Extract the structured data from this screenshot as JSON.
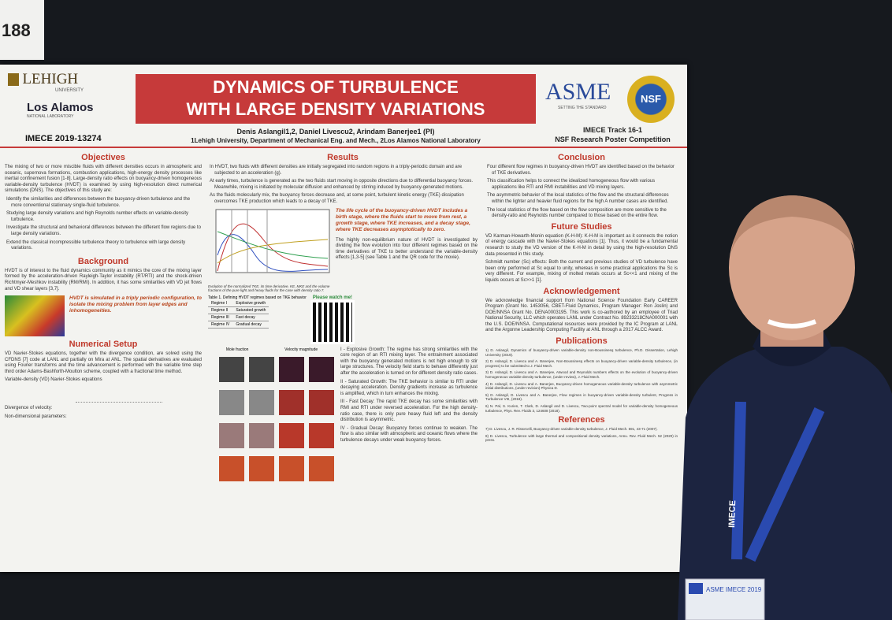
{
  "booth_number": "188",
  "poster": {
    "logos": {
      "lehigh": "LEHIGH",
      "lehigh_sub": "UNIVERSITY",
      "los_alamos": "Los Alamos",
      "los_alamos_sub": "NATIONAL LABORATORY",
      "asme": "ASME",
      "asme_sub": "SETTING THE STANDARD",
      "nsf": "NSF"
    },
    "paper_id": "IMECE 2019-13274",
    "title_lines": [
      "DYNAMICS OF TURBULENCE",
      "WITH LARGE DENSITY VARIATIONS"
    ],
    "authors": "Denis Aslangil1,2, Daniel Livescu2, Arindam Banerjee1 (PI)",
    "affiliations": "1Lehigh University, Department of Mechanical Eng. and Mech., 2Los Alamos National Laboratory",
    "track": "IMECE Track 16-1",
    "competition": "NSF Research Poster Competition",
    "objectives": {
      "heading": "Objectives",
      "text": "The mixing of two or more miscible fluids with different densities occurs in atmospheric and oceanic, supernova formations, combustion applications, high-energy density processes like inertial confinement fusion [1-8]. Large-density ratio effects on buoyancy-driven homogeneous variable-density turbulence (HVDT) is examined by using high-resolution direct numerical simulations (DNS). The objectives of this study are:",
      "bullets": [
        "Identify the similarities and differences between the buoyancy-driven turbulence and the more conventional stationary single-fluid turbulence.",
        "Studying large density variations and high Reynolds number effects on variable-density turbulence.",
        "Investigate the structural and behavioral differences between the different flow regions due to large density variations.",
        "Extend the classical incompressible turbulence theory to turbulence with large density variations."
      ]
    },
    "background": {
      "heading": "Background",
      "text": "HVDT is of interest to the fluid dynamics community as it mimics the core of the mixing layer formed by the acceleration-driven Rayleigh-Taylor instability (RT/RTI) and the shock-driven Richtmyer-Meshkov instability (RM/RMI). In addition, it has some similarities with VD jet flows and VD shear layers [3,7].",
      "note": "HVDT is simulated in a triply periodic configuration, to isolate the mixing problem from layer edges and inhomogeneities."
    },
    "numerical": {
      "heading": "Numerical Setup",
      "text": "VD Navier-Stokes equations, together with the divergence condition, are solved using the CFDNS [7] code at LANL and partially on Mira at ANL. The spatial derivatives are evaluated using Fourier transforms and the time advancement is performed with the variable time step third order Adams-Bashforth-Moulton scheme, coupled with a fractional time method.",
      "labels": [
        "Variable-density (VD) Navier-Stokes equations",
        "Divergence of velocity:",
        "Non-dimensional parameters:"
      ]
    },
    "results": {
      "heading": "Results",
      "bullets": [
        "In HVDT, two fluids with different densities are initially segregated into random regions in a triply-periodic domain and are subjected to an acceleration (g).",
        "At early times, turbulence is generated as the two fluids start moving in opposite directions due to differential buoyancy forces. Meanwhile, mixing is initiated by molecular diffusion and enhanced by stirring induced by buoyancy-generated motions.",
        "As the fluids molecularly mix, the buoyancy forces decrease and, at some point, turbulent kinetic energy (TKE) dissipation overcomes TKE production which leads to a decay of TKE."
      ],
      "life_cycle": "The life cycle of the buoyancy-driven HVDT includes a birth stage, where the fluids start to move from rest, a growth stage, where TKE increases, and a decay stage, where TKE decreases asymptotically to zero.",
      "nonequilibrium": "The highly non-equilibrium nature of HVDT is investigated by dividing the flow evolution into four different regimes based on the time derivatives of TKE to better understand the variable-density effects [1,3-5] (see Table 1 and the QR code for the movie).",
      "figure_caption": "Evolution of the normalized TKE, its time derivative, KE, MKE and the volume fractions of the pure light and heavy fluids for the case with density ratio 7.",
      "table_caption": "Table 1. Defining HVDT regimes based on TKE behavior",
      "regimes": [
        [
          "Regime I",
          "Explosive growth"
        ],
        [
          "Regime II",
          "Saturated growth"
        ],
        [
          "Regime III",
          "Fast decay"
        ],
        [
          "Regime IV",
          "Gradual decay"
        ]
      ],
      "qr_label": "Please watch me!",
      "image_labels": [
        "Mole fraction",
        "Velocity magnitude"
      ],
      "regime_text": [
        "I - Explosive Growth: The regime has strong similarities with the core region of an RTI mixing layer. The entrainment associated with the buoyancy generated motions is not high enough to stir large structures. The velocity field starts to behave differently just after the acceleration is turned on for different density ratio cases.",
        "II - Saturated Growth: The TKE behavior is similar to RTI under decaying acceleration. Density gradients increase as turbulence is amplified, which in turn enhances the mixing.",
        "III - Fast Decay: The rapid TKE decay has some similarities with RMI and RTI under reversed acceleration. For the high density-ratio case, there is only pure heavy fluid left and the density distribution is asymmetric.",
        "IV - Gradual Decay: Buoyancy forces continue to weaken. The flow is also similar with atmospheric and oceanic flows where the turbulence decays under weak buoyancy forces."
      ]
    },
    "conclusion": {
      "heading": "Conclusion",
      "bullets": [
        "Four different flow regimes in buoyancy-driven HVDT are identified based on the behavior of TKE derivatives.",
        "This classification helps to connect the idealized homogeneous flow with various applications like RTI and RMI instabilities and VD mixing layers.",
        "The asymmetric behavior of the local statistics of the flow and the structural differences within the lighter and heavier fluid regions for the high A number cases are identified.",
        "The local statistics of the flow based on the flow composition are more sensitive to the density-ratio and Reynolds number compared to those based on the entire flow."
      ]
    },
    "future": {
      "heading": "Future Studies",
      "items": [
        "VD Karman-Howarth-Monin equation (K-H-M): K-H-M is important as it connects the notion of energy cascade with the Navier-Stokes equations [1]. Thus, it would be a fundamental research to study the VD version of the K-H-M in detail by using the high-resolution DNS data presented in this study.",
        "Schmidt number (Sc) effects: Both the current and previous studies of VD turbulence have been only performed at Sc equal to unity, whereas in some practical applications the Sc is very different. For example, mixing of molted metals occurs at Sc<<1 and mixing of the liquids occurs at Sc>>1 [1]."
      ]
    },
    "acknowledgement": {
      "heading": "Acknowledgement",
      "text": "We acknowledge financial support from National Science Foundation Early CAREER Program (Grant No. 1453056, CBET-Fluid Dynamics, Program Manager: Ron Joslin) and DOE/NNSA Grant No. DENA0003195. This work is co-authored by an employee of Triad National Security, LLC which operates LANL under Contract No. 89233218CNA000001 with the U.S. DOE/NNSA. Computational resources were provided by the IC Program at LANL and the Argonne Leadership Computing Facility at ANL through a 2017 ALCC Award."
    },
    "publications": {
      "heading": "Publications",
      "items": [
        "1) D. Aslangil, Dynamics of buoyancy-driven variable-density non-Boussinesq turbulence, Ph.D. Dissertation, Lehigh University (2019).",
        "2) D. Aslangil, D. Livescu and A. Banerjee, Non-Boussinesq effects on buoyancy-driven variable-density turbulence, (in progress) to be submitted to J. Fluid Mech.",
        "3) D. Aslangil, D. Livescu and A. Banerjee, Atwood and Reynolds numbers effects on the evolution of buoyancy-driven homogeneous variable-density turbulence, (under review), J. Fluid Mech.",
        "4) D. Aslangil, D. Livescu and A. Banerjee, Buoyancy-driven homogeneous variable-density turbulence with asymmetric initial distributions, (under revision) Physica D.",
        "5) D. Aslangil, D. Livescu and A. Banerjee, Flow regimes in buoyancy-driven variable-density turbulent, Progress in Turbulence VIII, (2018).",
        "6) N. Pal, S. Kurien, T. Clark, D. Aslangil and D. Livescu, Two-point spectral model for variable-density homogeneous turbulence, Phys. Rev. Fluids 3, 124608 (2018)."
      ]
    },
    "references": {
      "heading": "References",
      "items": [
        "7) D. Livescu, J. R. Ristorcelli, Buoyancy-driven variable-density turbulence, J. Fluid Mech. 591, 43-71 (2007).",
        "8) D. Livescu, Turbulence with large thermal and compositional density variations, Annu. Rev. Fluid Mech. 52 (2020) in press."
      ]
    }
  },
  "badge": {
    "event": "ASME IMECE 2019"
  },
  "lanyard": "IMECE"
}
